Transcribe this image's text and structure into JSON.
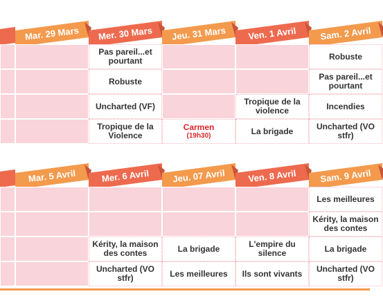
{
  "weeks": [
    {
      "days": [
        {
          "label": "Mar. 29 Mars",
          "cells": [
            null,
            null,
            null,
            null
          ]
        },
        {
          "label": "Mer. 30 Mars",
          "cells": [
            {
              "title": "Pas pareil...et pourtant"
            },
            {
              "title": "Robuste"
            },
            {
              "title": "Uncharted (VF)"
            },
            {
              "title": "Tropique de la Violence"
            }
          ]
        },
        {
          "label": "Jeu. 31 Mars",
          "cells": [
            null,
            null,
            null,
            {
              "title": "Carmen",
              "time": "(19h30)"
            }
          ]
        },
        {
          "label": "Ven. 1 Avril",
          "cells": [
            null,
            null,
            {
              "title": "Tropique de la violence"
            },
            {
              "title": "La brigade"
            }
          ]
        },
        {
          "label": "Sam. 2 Avril",
          "cells": [
            {
              "title": "Robuste"
            },
            {
              "title": "Pas pareil...et pourtant"
            },
            {
              "title": "Incendies"
            },
            {
              "title": "Uncharted (VO stfr)"
            }
          ]
        }
      ]
    },
    {
      "days": [
        {
          "label": "Mar. 5 Avril",
          "cells": [
            null,
            null,
            null,
            null
          ]
        },
        {
          "label": "Mer. 6 Avril",
          "cells": [
            null,
            null,
            {
              "title": "Kérity, la maison des contes"
            },
            {
              "title": "Uncharted (VO stfr)"
            }
          ]
        },
        {
          "label": "Jeu. 07 Avril",
          "cells": [
            null,
            null,
            {
              "title": "La brigade"
            },
            {
              "title": "Les meilleures"
            }
          ]
        },
        {
          "label": "Ven. 8 Avril",
          "cells": [
            null,
            null,
            {
              "title": "L'empire du silence"
            },
            {
              "title": "Ils sont vivants"
            }
          ]
        },
        {
          "label": "Sam. 9 Avril",
          "cells": [
            {
              "title": "Les meilleures"
            },
            {
              "title": "Kérity, la maison des contes"
            },
            {
              "title": "La brigade"
            },
            {
              "title": "Uncharted (VO stfr)"
            }
          ]
        }
      ]
    }
  ]
}
